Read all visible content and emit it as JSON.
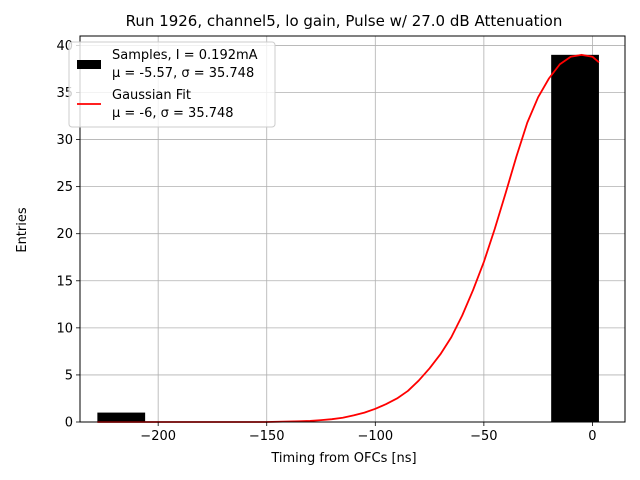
{
  "chart_data": {
    "type": "bar",
    "title": "Run 1926, channel5, lo gain, Pulse w/ 27.0 dB Attenuation",
    "xlabel": "Timing from OFCs [ns]",
    "ylabel": "Entries",
    "xlim": [
      -236,
      15
    ],
    "ylim": [
      0,
      41
    ],
    "xticks": [
      -200,
      -150,
      -100,
      -50,
      0
    ],
    "xtick_labels": [
      "−200",
      "−150",
      "−100",
      "−50",
      "0"
    ],
    "yticks": [
      0,
      5,
      10,
      15,
      20,
      25,
      30,
      35,
      40
    ],
    "ytick_labels": [
      "0",
      "5",
      "10",
      "15",
      "20",
      "25",
      "30",
      "35",
      "40"
    ],
    "grid": true,
    "legend_position": "top-left",
    "histogram": {
      "bins": [
        {
          "x0": -228,
          "x1": -206,
          "count": 1
        },
        {
          "x0": -19,
          "x1": 3,
          "count": 39
        }
      ],
      "color": "#000000"
    },
    "fit": {
      "type": "gaussian",
      "color": "#ff0000",
      "x": [
        -228,
        -220,
        -210,
        -200,
        -190,
        -180,
        -170,
        -160,
        -150,
        -140,
        -135,
        -130,
        -125,
        -120,
        -115,
        -110,
        -105,
        -100,
        -95,
        -90,
        -85,
        -80,
        -75,
        -70,
        -65,
        -60,
        -55,
        -50,
        -45,
        -40,
        -35,
        -30,
        -25,
        -20,
        -15,
        -10,
        -5,
        0,
        3
      ],
      "y": [
        0,
        0,
        0,
        0,
        0,
        0,
        0,
        0,
        0,
        0.05,
        0.08,
        0.12,
        0.2,
        0.3,
        0.45,
        0.7,
        1.0,
        1.4,
        1.9,
        2.5,
        3.3,
        4.4,
        5.7,
        7.2,
        9.0,
        11.3,
        14.0,
        17.0,
        20.5,
        24.3,
        28.2,
        31.8,
        34.5,
        36.5,
        38.0,
        38.8,
        39.0,
        38.8,
        38.2
      ]
    },
    "legend": {
      "entries": [
        {
          "line1": "Samples, I = 0.192mA",
          "line2": "μ = -5.57, σ = 35.748",
          "marker": "bar"
        },
        {
          "line1": "Gaussian Fit",
          "line2": "μ = -6, σ = 35.748",
          "marker": "line"
        }
      ]
    }
  }
}
